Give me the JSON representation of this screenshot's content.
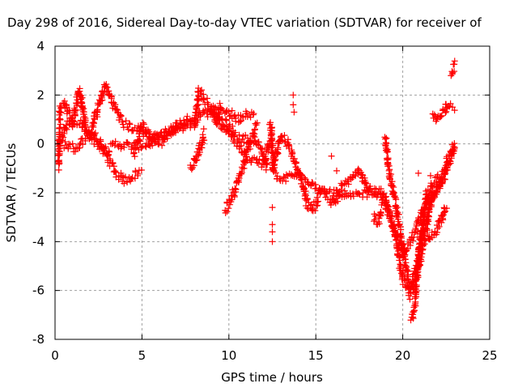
{
  "chart_data": {
    "type": "scatter",
    "title": "Day 298 of 2016, Sidereal Day-to-day VTEC variation (SDTVAR) for receiver of",
    "xlabel": "GPS time / hours",
    "ylabel": "SDTVAR / TECUs",
    "xlim": [
      0,
      25
    ],
    "ylim": [
      -8,
      4
    ],
    "xticks": [
      "0",
      "5",
      "10",
      "15",
      "20",
      "25"
    ],
    "yticks": [
      "4",
      "2",
      "0",
      "-2",
      "-4",
      "-6",
      "-8"
    ],
    "grid": true,
    "marker": "+",
    "color": "#ff0000",
    "traces": [
      [
        [
          0.2,
          -1
        ],
        [
          0.3,
          1.5
        ],
        [
          0.6,
          1.6
        ],
        [
          1,
          0.8
        ],
        [
          1.4,
          2.2
        ],
        [
          1.8,
          0.5
        ],
        [
          2.5,
          0
        ],
        [
          3,
          -0.5
        ],
        [
          3.5,
          -1.2
        ],
        [
          4,
          -1.5
        ],
        [
          4.5,
          -1.3
        ],
        [
          5,
          -1.1
        ]
      ],
      [
        [
          0.2,
          0
        ],
        [
          0.7,
          0.8
        ],
        [
          1.5,
          0.8
        ],
        [
          2.3,
          0.3
        ],
        [
          3,
          -0.3
        ],
        [
          3.5,
          0
        ],
        [
          4.5,
          -0.1
        ],
        [
          5.5,
          0
        ],
        [
          6,
          0.3
        ],
        [
          7,
          0.6
        ],
        [
          8,
          0.9
        ],
        [
          8.5,
          1.4
        ],
        [
          9,
          1.2
        ],
        [
          9.5,
          0.8
        ],
        [
          10,
          0.5
        ],
        [
          11,
          -0.5
        ],
        [
          12,
          -0.8
        ],
        [
          12.5,
          0.5
        ]
      ],
      [
        [
          0.5,
          0
        ],
        [
          1.2,
          -0.2
        ],
        [
          2,
          0.4
        ],
        [
          2.9,
          2.4
        ],
        [
          3.5,
          1.4
        ],
        [
          4,
          0.8
        ],
        [
          5,
          0.5
        ],
        [
          6,
          0
        ],
        [
          7,
          0.8
        ],
        [
          7.7,
          1
        ],
        [
          8,
          0.8
        ],
        [
          8.3,
          2.2
        ],
        [
          8.9,
          1.5
        ],
        [
          9.3,
          1
        ],
        [
          9.5,
          1.5
        ],
        [
          10,
          1.3
        ],
        [
          10.5,
          1.0
        ],
        [
          11,
          1.3
        ],
        [
          11.5,
          1.2
        ]
      ],
      [
        [
          4.5,
          -0.5
        ],
        [
          5,
          0.8
        ],
        [
          5.5,
          0.2
        ],
        [
          6.5,
          0.5
        ],
        [
          7.5,
          0.8
        ]
      ],
      [
        [
          7.8,
          -1
        ],
        [
          8.2,
          -0.5
        ],
        [
          8.6,
          0.5
        ]
      ],
      [
        [
          9,
          1.5
        ],
        [
          9.5,
          1
        ],
        [
          10,
          0.7
        ],
        [
          10.6,
          0.2
        ],
        [
          11.5,
          0.2
        ],
        [
          12,
          -0.5
        ],
        [
          12.2,
          -1.0
        ]
      ],
      [
        [
          9.8,
          -2.7
        ],
        [
          10.3,
          -2
        ],
        [
          10.8,
          -1
        ],
        [
          11.2,
          0
        ],
        [
          11.6,
          0.8
        ]
      ],
      [
        [
          12.4,
          0.8
        ],
        [
          12.6,
          -1.2
        ],
        [
          13,
          -1.5
        ],
        [
          14,
          -1.2
        ],
        [
          15,
          -1.7
        ],
        [
          15.5,
          -2
        ],
        [
          16,
          -2.5
        ],
        [
          16.5,
          -2
        ],
        [
          17,
          -2.2
        ],
        [
          18,
          -2
        ],
        [
          18.8,
          -2
        ],
        [
          19.5,
          -3.5
        ],
        [
          20,
          -5.5
        ],
        [
          20.4,
          -6.2
        ],
        [
          20.8,
          -5
        ],
        [
          21.2,
          -3.5
        ],
        [
          21.7,
          -2
        ],
        [
          22.3,
          -1.5
        ],
        [
          23,
          -0.1
        ]
      ],
      [
        [
          12.5,
          -1
        ],
        [
          13,
          0.3
        ],
        [
          13.4,
          0
        ],
        [
          13.8,
          -0.8
        ],
        [
          14.2,
          -1.5
        ],
        [
          14.5,
          -2.5
        ],
        [
          14.8,
          -2.7
        ],
        [
          15.3,
          -2
        ],
        [
          16,
          -2
        ],
        [
          17,
          -1.5
        ],
        [
          17.5,
          -1
        ],
        [
          18,
          -1.8
        ],
        [
          19,
          -2.3
        ],
        [
          19.5,
          -3.5
        ],
        [
          20,
          -4.5
        ],
        [
          20.3,
          -4.2
        ],
        [
          20.8,
          -3.5
        ],
        [
          21.5,
          -2
        ],
        [
          22,
          -1.3
        ]
      ],
      [
        [
          19,
          0.2
        ],
        [
          19.2,
          -1
        ],
        [
          19.6,
          -2.5
        ],
        [
          20.3,
          -5.5
        ],
        [
          20.7,
          -5.8
        ],
        [
          21.2,
          -4
        ],
        [
          21.6,
          -2.5
        ],
        [
          22.2,
          -1.5
        ],
        [
          22.5,
          -0.8
        ],
        [
          23,
          0
        ]
      ],
      [
        [
          20.5,
          -7.2
        ],
        [
          20.7,
          -6.5
        ],
        [
          21,
          -4
        ],
        [
          21.4,
          -2
        ]
      ],
      [
        [
          21.7,
          1.2
        ],
        [
          22,
          1
        ],
        [
          22.3,
          1.2
        ],
        [
          22.6,
          1.6
        ],
        [
          23,
          1.5
        ]
      ],
      [
        [
          22.8,
          2.9
        ],
        [
          23,
          3.3
        ]
      ],
      [
        [
          21.3,
          -4
        ],
        [
          22,
          -3.5
        ],
        [
          22.5,
          -2.5
        ]
      ],
      [
        [
          18.3,
          -3
        ],
        [
          18.6,
          -3.2
        ],
        [
          18.8,
          -2.5
        ]
      ]
    ],
    "isolated_points": [
      [
        12.5,
        -2.6
      ],
      [
        12.5,
        -3.3
      ],
      [
        12.5,
        -3.6
      ],
      [
        12.5,
        -4
      ],
      [
        13.7,
        2
      ],
      [
        13.7,
        1.6
      ],
      [
        13.75,
        1.3
      ],
      [
        15.9,
        -0.5
      ],
      [
        16.2,
        -1.1
      ],
      [
        21.6,
        -1.3
      ],
      [
        20.9,
        -1.2
      ]
    ]
  }
}
